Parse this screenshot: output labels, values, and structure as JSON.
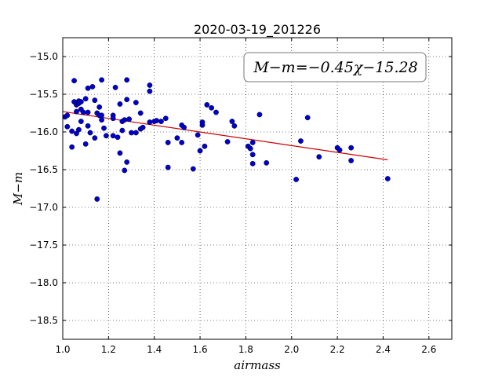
{
  "chart_data": {
    "type": "scatter",
    "title": "2020-03-19_201226",
    "xlabel": "airmass",
    "ylabel": "M−m",
    "xlim": [
      1.0,
      2.7
    ],
    "ylim": [
      -18.75,
      -14.75
    ],
    "invert_y": true,
    "grid": true,
    "x_ticks": [
      "1.0",
      "1.2",
      "1.4",
      "1.6",
      "1.8",
      "2.0",
      "2.2",
      "2.4",
      "2.6"
    ],
    "y_ticks": [
      "−15.0",
      "−15.5",
      "−16.0",
      "−16.5",
      "−17.0",
      "−17.5",
      "−18.0",
      "−18.5"
    ],
    "annotation": "M−m=−0.45χ−15.28",
    "fit_line": {
      "x": [
        1.0,
        2.42
      ],
      "y": [
        -15.73,
        -16.37
      ],
      "color": "#cc0000"
    },
    "point_color": "#0000cc",
    "series": [
      {
        "points": [
          [
            1.01,
            -15.8
          ],
          [
            1.02,
            -15.78
          ],
          [
            1.02,
            -15.93
          ],
          [
            1.04,
            -15.99
          ],
          [
            1.04,
            -16.2
          ],
          [
            1.05,
            -15.32
          ],
          [
            1.05,
            -15.6
          ],
          [
            1.06,
            -15.64
          ],
          [
            1.06,
            -15.73
          ],
          [
            1.06,
            -16.02
          ],
          [
            1.07,
            -15.59
          ],
          [
            1.07,
            -15.62
          ],
          [
            1.07,
            -15.97
          ],
          [
            1.08,
            -15.6
          ],
          [
            1.08,
            -15.7
          ],
          [
            1.08,
            -15.86
          ],
          [
            1.09,
            -15.74
          ],
          [
            1.1,
            -15.56
          ],
          [
            1.1,
            -16.16
          ],
          [
            1.11,
            -15.42
          ],
          [
            1.11,
            -15.74
          ],
          [
            1.11,
            -15.92
          ],
          [
            1.12,
            -16.01
          ],
          [
            1.13,
            -15.4
          ],
          [
            1.14,
            -15.58
          ],
          [
            1.14,
            -16.08
          ],
          [
            1.15,
            -15.75
          ],
          [
            1.15,
            -16.89
          ],
          [
            1.16,
            -15.67
          ],
          [
            1.16,
            -15.78
          ],
          [
            1.17,
            -15.31
          ],
          [
            1.17,
            -15.84
          ],
          [
            1.17,
            -15.78
          ],
          [
            1.18,
            -15.95
          ],
          [
            1.19,
            -16.05
          ],
          [
            1.22,
            -15.78
          ],
          [
            1.22,
            -15.82
          ],
          [
            1.22,
            -16.05
          ],
          [
            1.23,
            -15.41
          ],
          [
            1.24,
            -16.07
          ],
          [
            1.25,
            -15.63
          ],
          [
            1.25,
            -16.28
          ],
          [
            1.26,
            -15.98
          ],
          [
            1.26,
            -15.86
          ],
          [
            1.27,
            -15.84
          ],
          [
            1.27,
            -16.51
          ],
          [
            1.28,
            -16.4
          ],
          [
            1.28,
            -15.31
          ],
          [
            1.28,
            -15.57
          ],
          [
            1.29,
            -15.83
          ],
          [
            1.3,
            -16.01
          ],
          [
            1.32,
            -15.61
          ],
          [
            1.32,
            -16.01
          ],
          [
            1.34,
            -15.75
          ],
          [
            1.34,
            -15.96
          ],
          [
            1.35,
            -15.94
          ],
          [
            1.38,
            -15.87
          ],
          [
            1.38,
            -15.38
          ],
          [
            1.38,
            -15.46
          ],
          [
            1.4,
            -15.86
          ],
          [
            1.41,
            -15.85
          ],
          [
            1.43,
            -15.86
          ],
          [
            1.45,
            -15.82
          ],
          [
            1.46,
            -16.14
          ],
          [
            1.46,
            -16.47
          ],
          [
            1.5,
            -16.08
          ],
          [
            1.52,
            -16.14
          ],
          [
            1.52,
            -15.91
          ],
          [
            1.53,
            -15.94
          ],
          [
            1.57,
            -16.49
          ],
          [
            1.59,
            -16.04
          ],
          [
            1.6,
            -16.25
          ],
          [
            1.61,
            -15.91
          ],
          [
            1.61,
            -15.87
          ],
          [
            1.62,
            -16.19
          ],
          [
            1.63,
            -15.64
          ],
          [
            1.65,
            -15.68
          ],
          [
            1.67,
            -15.74
          ],
          [
            1.72,
            -16.13
          ],
          [
            1.74,
            -15.86
          ],
          [
            1.75,
            -15.92
          ],
          [
            1.81,
            -16.19
          ],
          [
            1.82,
            -16.22
          ],
          [
            1.83,
            -16.3
          ],
          [
            1.83,
            -16.14
          ],
          [
            1.83,
            -16.42
          ],
          [
            1.86,
            -15.77
          ],
          [
            1.89,
            -16.41
          ],
          [
            2.02,
            -16.63
          ],
          [
            2.04,
            -16.12
          ],
          [
            2.07,
            -15.81
          ],
          [
            2.12,
            -16.33
          ],
          [
            2.2,
            -16.21
          ],
          [
            2.21,
            -16.24
          ],
          [
            2.26,
            -16.38
          ],
          [
            2.26,
            -16.21
          ],
          [
            2.42,
            -16.62
          ]
        ]
      }
    ]
  }
}
